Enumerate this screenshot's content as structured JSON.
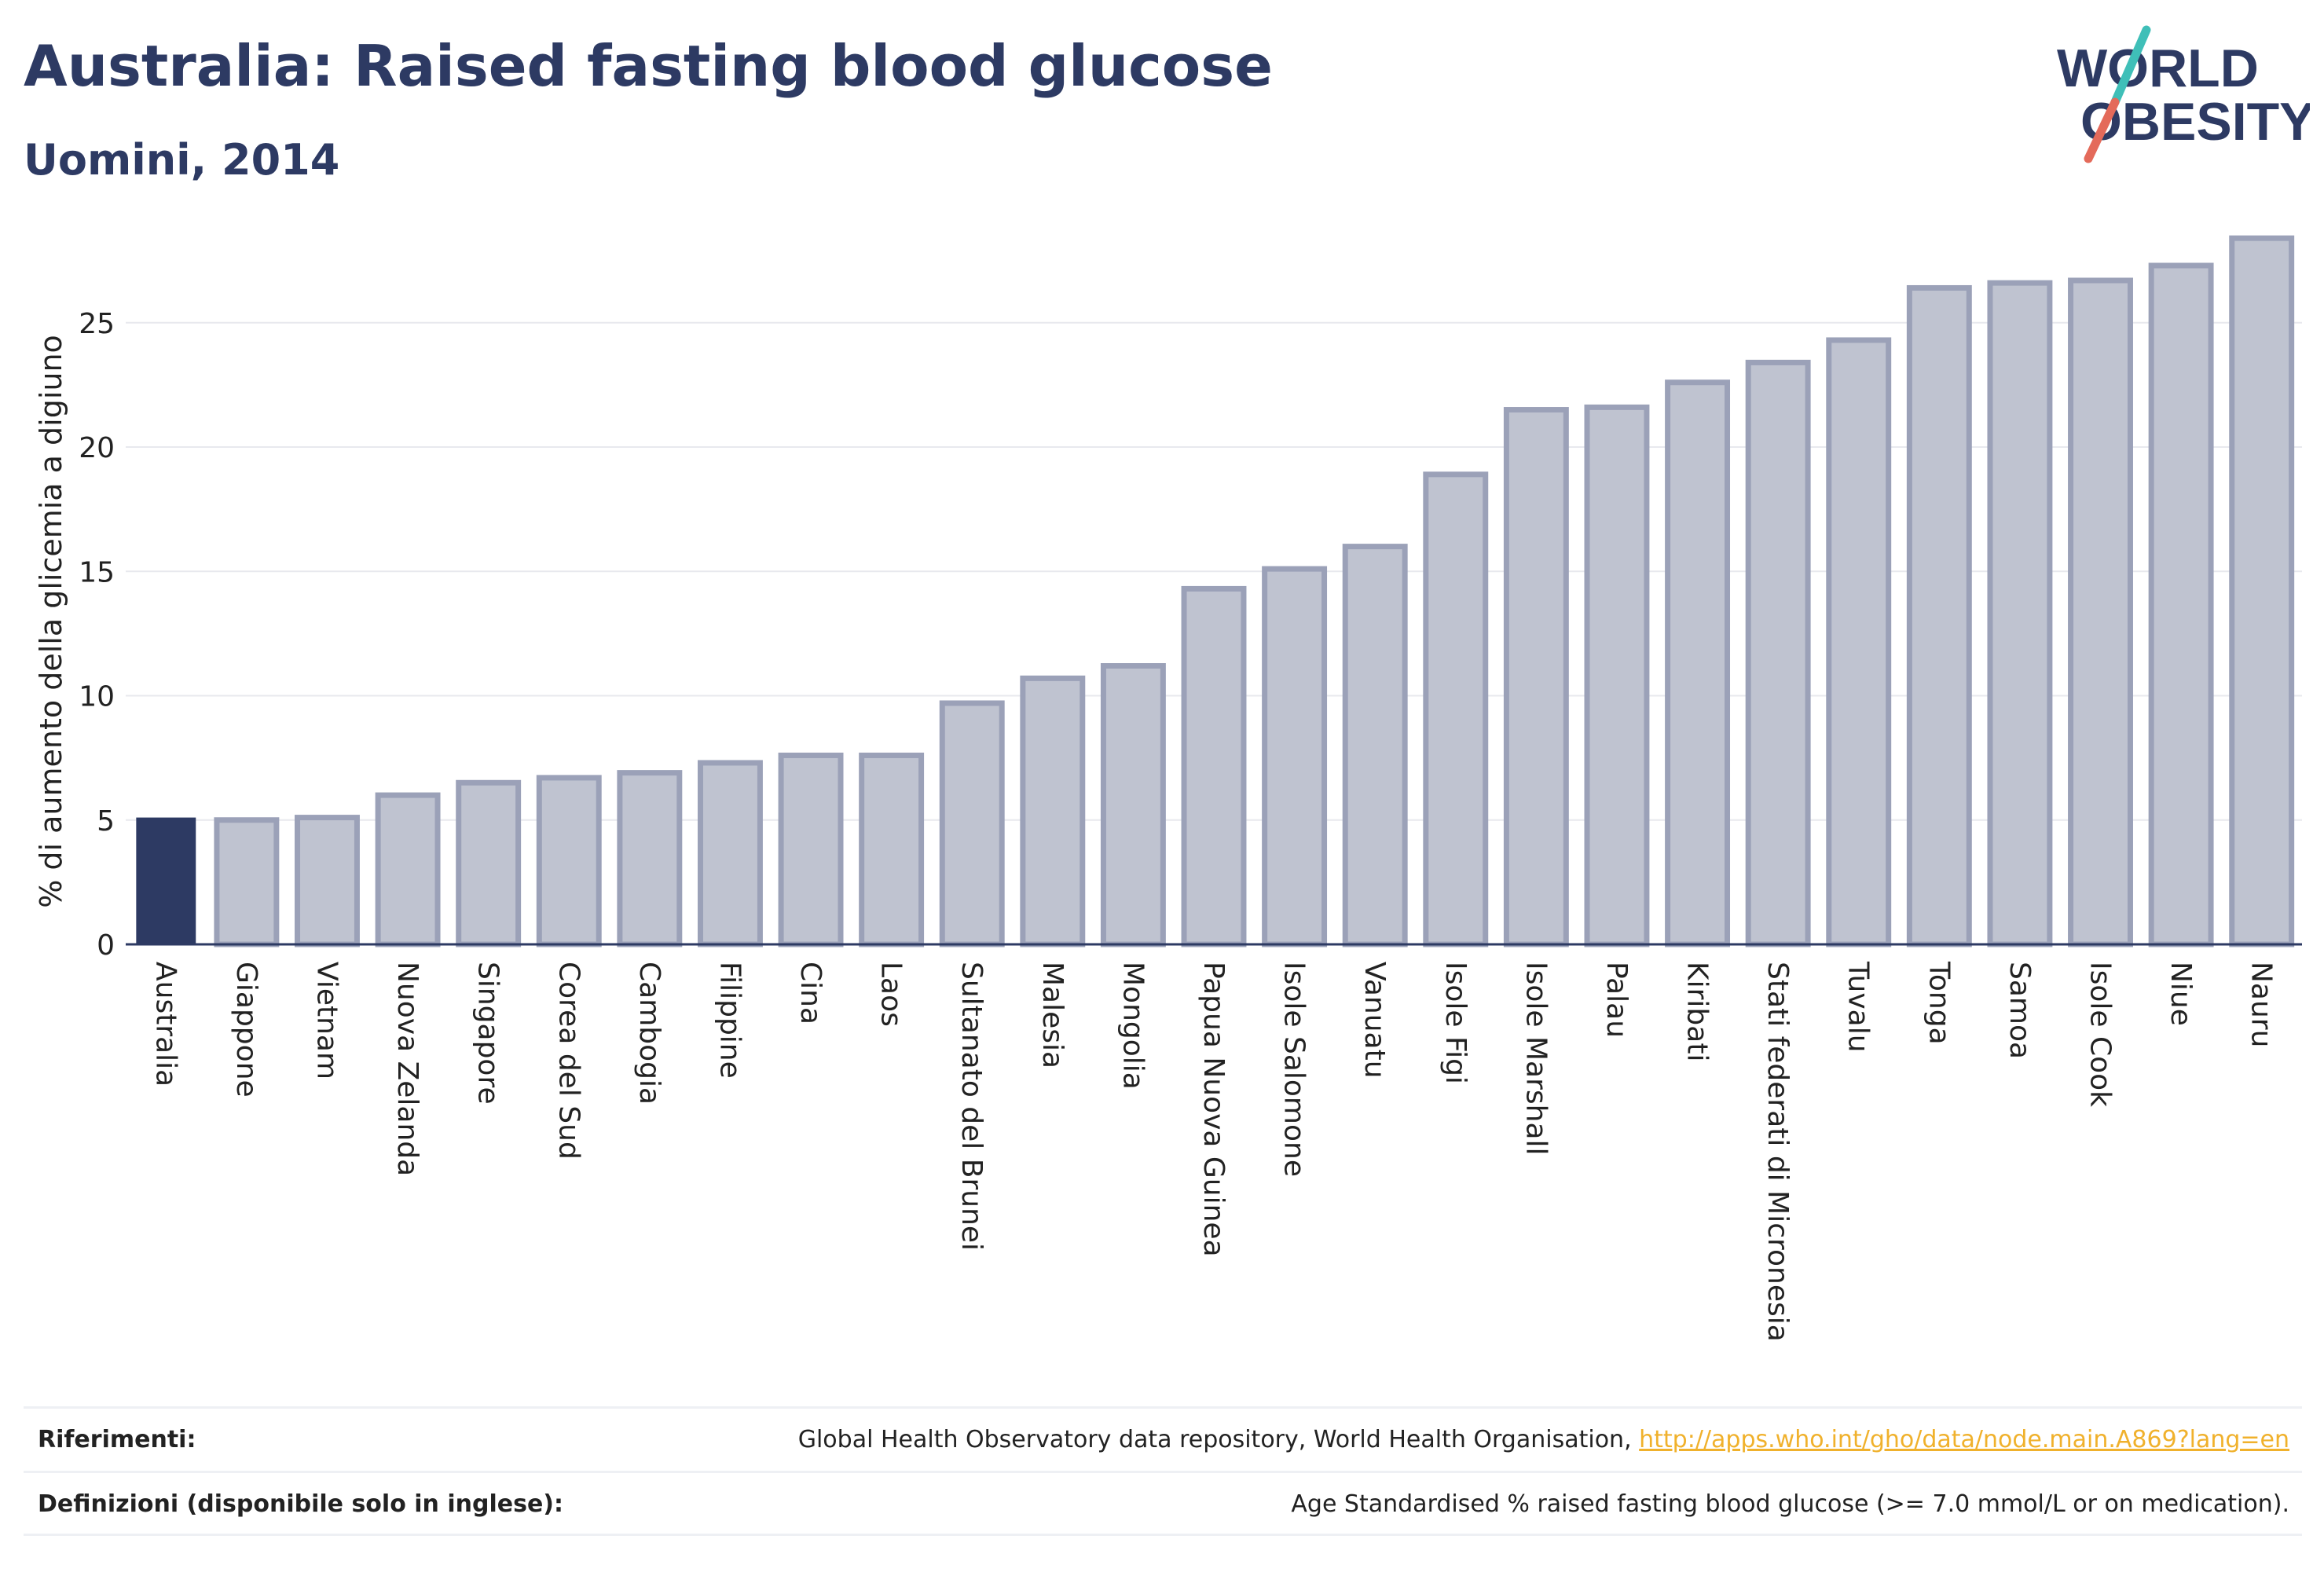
{
  "title": "Australia: Raised fasting blood glucose",
  "subtitle": "Uomini, 2014",
  "logo": {
    "line1": "WORLD",
    "line2": "OBESITY"
  },
  "colors": {
    "highlight_bar": "#2d3a63",
    "other_bar": "#bfc3d0",
    "other_bar_border": "#9ba1b8",
    "text_dark": "#2d3a63",
    "link": "#f0b12c",
    "logo_teal": "#3fbfb8",
    "logo_coral": "#e46a5a"
  },
  "chart_data": {
    "type": "bar",
    "ylabel": "% di aumento della glicemia a digiuno",
    "ylim": [
      0,
      28.5
    ],
    "yticks": [
      0,
      5,
      10,
      15,
      20,
      25
    ],
    "grid": true,
    "highlight": "Australia",
    "categories": [
      "Australia",
      "Giappone",
      "Vietnam",
      "Nuova Zelanda",
      "Singapore",
      "Corea del Sud",
      "Cambogia",
      "Filippine",
      "Cina",
      "Laos",
      "Sultanato del Brunei",
      "Malesia",
      "Mongolia",
      "Papua Nuova Guinea",
      "Isole Salomone",
      "Vanuatu",
      "Isole Figi",
      "Isole Marshall",
      "Palau",
      "Kiribati",
      "Stati federati di Micronesia",
      "Tuvalu",
      "Tonga",
      "Samoa",
      "Isole Cook",
      "Niue",
      "Nauru"
    ],
    "values": [
      5.1,
      5.0,
      5.1,
      6.0,
      6.5,
      6.7,
      6.9,
      7.3,
      7.6,
      7.6,
      9.7,
      10.7,
      11.2,
      14.3,
      15.1,
      16.0,
      18.9,
      21.5,
      21.6,
      22.6,
      23.4,
      24.3,
      26.4,
      26.6,
      26.7,
      27.3,
      28.4
    ]
  },
  "references": {
    "label": "Riferimenti:",
    "text": "Global Health Observatory data repository, World Health Organisation, ",
    "link": "http://apps.who.int/gho/data/node.main.A869?lang=en"
  },
  "definitions": {
    "label": "Definizioni (disponibile solo in inglese):",
    "text": "Age Standardised % raised fasting blood glucose (>= 7.0 mmol/L or on medication)."
  }
}
